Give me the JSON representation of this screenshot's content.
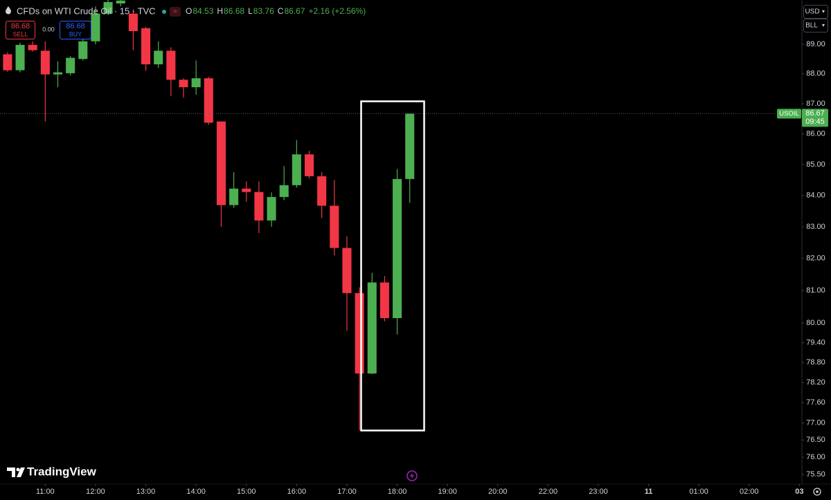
{
  "chart_data": {
    "type": "candlestick",
    "title": "CFDs on WTI Crude Oil · 15 · TVC",
    "change": "+2.16 (+2.56%)",
    "ohlc_labels": [
      "O",
      "H",
      "L",
      "C"
    ],
    "x": [
      10.25,
      10.5,
      10.75,
      11,
      11.25,
      11.5,
      11.75,
      12,
      12.25,
      12.5,
      12.75,
      13,
      13.25,
      13.5,
      13.75,
      14,
      14.25,
      14.5,
      14.75,
      15,
      15.25,
      15.5,
      15.75,
      16,
      16.25,
      16.5,
      16.75,
      17,
      17.25,
      17.5,
      17.75,
      18,
      18.25
    ],
    "open": [
      88.66,
      88.12,
      88.98,
      88.78,
      87.98,
      88.02,
      88.5,
      89.1,
      90.05,
      90.4,
      90.05,
      89.55,
      88.32,
      88.78,
      87.8,
      87.55,
      87.85,
      86.41,
      83.69,
      84.22,
      84.11,
      83.2,
      83.95,
      84.33,
      85.33,
      84.62,
      83.67,
      82.33,
      80.92,
      78.47,
      81.25,
      80.15,
      84.53
    ],
    "high": [
      88.73,
      89.05,
      89.1,
      89.1,
      88.42,
      88.6,
      89.3,
      90.3,
      90.6,
      90.6,
      90.2,
      89.6,
      89.1,
      88.9,
      87.85,
      88.45,
      87.9,
      86.41,
      84.75,
      84.45,
      84.45,
      84.1,
      84.95,
      85.8,
      85.45,
      84.75,
      84.5,
      82.7,
      81.1,
      81.55,
      81.45,
      84.85,
      86.68
    ],
    "low": [
      88.07,
      88.05,
      88.75,
      86.41,
      87.55,
      87.95,
      88.45,
      89.0,
      90.0,
      90.3,
      88.8,
      88.1,
      88.2,
      87.25,
      87.2,
      87.3,
      86.3,
      83.0,
      83.6,
      83.8,
      82.8,
      83.0,
      83.85,
      84.25,
      84.55,
      83.28,
      82.1,
      79.76,
      76.78,
      78.45,
      80.05,
      79.65,
      83.76
    ],
    "close": [
      88.12,
      88.98,
      88.8,
      87.98,
      88.05,
      88.54,
      89.1,
      90.05,
      90.45,
      90.5,
      89.45,
      88.32,
      88.78,
      87.8,
      87.55,
      87.85,
      86.37,
      83.69,
      84.22,
      84.11,
      83.2,
      83.95,
      84.33,
      85.33,
      84.62,
      83.67,
      82.33,
      80.92,
      78.47,
      81.25,
      80.15,
      84.53,
      86.67
    ],
    "up_color": "#4caf50",
    "down_color": "#f23645",
    "log_scale": true,
    "grid": false,
    "ylim": [
      75.22,
      90.52
    ],
    "yticks": [
      {
        "value": 89,
        "label": "89.00"
      },
      {
        "value": 88,
        "label": "88.00"
      },
      {
        "value": 87,
        "label": "87.00"
      },
      {
        "value": 86,
        "label": "86.00"
      },
      {
        "value": 85,
        "label": "85.00"
      },
      {
        "value": 84,
        "label": "84.00"
      },
      {
        "value": 83,
        "label": "83.00"
      },
      {
        "value": 82,
        "label": "82.00"
      },
      {
        "value": 81,
        "label": "81.00"
      },
      {
        "value": 80,
        "label": "80.00"
      },
      {
        "value": 79.4,
        "label": "79.40"
      },
      {
        "value": 78.8,
        "label": "78.80"
      },
      {
        "value": 78.2,
        "label": "78.20"
      },
      {
        "value": 77.6,
        "label": "77.60"
      },
      {
        "value": 77,
        "label": "77.00"
      },
      {
        "value": 76.5,
        "label": "76.50"
      },
      {
        "value": 76,
        "label": "76.00"
      },
      {
        "value": 75.5,
        "label": "75.50"
      }
    ],
    "xlim": [
      10.1,
      27.05
    ],
    "session_gap": [
      21,
      22
    ],
    "xticks": [
      {
        "value": 11,
        "label": "11:00"
      },
      {
        "value": 12,
        "label": "12:00"
      },
      {
        "value": 13,
        "label": "13:00"
      },
      {
        "value": 14,
        "label": "14:00"
      },
      {
        "value": 15,
        "label": "15:00"
      },
      {
        "value": 16,
        "label": "16:00"
      },
      {
        "value": 17,
        "label": "17:00"
      },
      {
        "value": 18,
        "label": "18:00"
      },
      {
        "value": 19,
        "label": "19:00"
      },
      {
        "value": 20,
        "label": "20:00"
      },
      {
        "value": 22,
        "label": "22:00"
      },
      {
        "value": 23,
        "label": "23:00"
      },
      {
        "value": 24,
        "label": "11"
      },
      {
        "value": 25,
        "label": "01:00"
      },
      {
        "value": 26,
        "label": "02:00"
      },
      {
        "value": 27,
        "label": "03"
      }
    ]
  },
  "trade_panel": {
    "sell_price": "86.68",
    "sell_label": "SELL",
    "spread": "0.00",
    "buy_price": "86.68",
    "buy_label": "BUY"
  },
  "price_label": {
    "symbol": "USOIL",
    "countdown": "09:45"
  },
  "currency": "USD",
  "unit": "BLL",
  "logo": "TradingView"
}
